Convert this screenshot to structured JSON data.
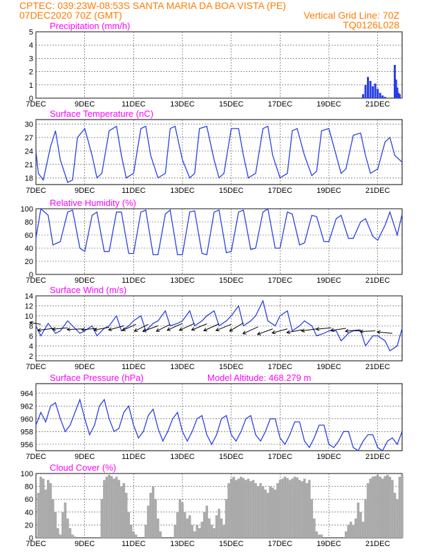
{
  "header": {
    "line1_left": "CPTEC:   039:23W-08:53S   SANTA MARIA DA BOA VISTA (PE)",
    "line2_left": "07DEC2020 70Z (GMT)",
    "line2_right": "Vertical Grid Line: 70Z",
    "line3_right": "TQ0126L028"
  },
  "colors": {
    "header": "#ff7b00",
    "title": "#ff00ff",
    "line": "#2a3fe0",
    "cloud": "#aaaaaa",
    "grid": "#444444"
  },
  "x_ticks": [
    "7DEC",
    "9DEC",
    "11DEC",
    "13DEC",
    "15DEC",
    "17DEC",
    "19DEC",
    "21DEC"
  ],
  "chart_data": [
    {
      "id": "precip",
      "type": "bar",
      "title": "Precipitation (mm/h)",
      "ylim": [
        0,
        5
      ],
      "yticks": [
        0,
        1,
        2,
        3,
        4,
        5
      ],
      "x": [
        20.4,
        20.5,
        20.6,
        20.7,
        20.8,
        20.9,
        21.0,
        21.1,
        21.2,
        21.3,
        21.7,
        21.75,
        21.8,
        21.85,
        21.9
      ],
      "values": [
        0.3,
        1.0,
        1.6,
        1.3,
        0.9,
        1.1,
        0.7,
        0.4,
        0.2,
        0.1,
        2.5,
        1.4,
        0.8,
        0.4,
        0.3
      ]
    },
    {
      "id": "temp",
      "type": "line",
      "title": "Surface Temperature (nC)",
      "ylim": [
        16.5,
        31
      ],
      "yticks": [
        18,
        21,
        24,
        27,
        30
      ],
      "x": [
        7.0,
        7.1,
        7.3,
        7.6,
        7.8,
        8.0,
        8.3,
        8.5,
        8.7,
        9.0,
        9.3,
        9.5,
        9.7,
        10.0,
        10.3,
        10.5,
        10.7,
        11.0,
        11.3,
        11.5,
        11.7,
        12.0,
        12.3,
        12.5,
        12.7,
        13.0,
        13.3,
        13.5,
        13.7,
        14.0,
        14.3,
        14.5,
        14.7,
        15.0,
        15.3,
        15.5,
        15.7,
        16.0,
        16.3,
        16.5,
        16.7,
        17.0,
        17.3,
        17.5,
        17.7,
        18.0,
        18.3,
        18.5,
        18.7,
        19.0,
        19.3,
        19.5,
        19.7,
        20.0,
        20.3,
        20.5,
        20.7,
        21.0,
        21.3,
        21.5,
        21.7,
        22.0
      ],
      "values": [
        24,
        19,
        17.5,
        25,
        28.5,
        22,
        17,
        17.5,
        27,
        29,
        23,
        18,
        19,
        28.5,
        29.5,
        23,
        18,
        19,
        29,
        29.5,
        23,
        18,
        19,
        29,
        29.5,
        22,
        18,
        19,
        29,
        29.5,
        22,
        18,
        19,
        29,
        29,
        23,
        18,
        19,
        29,
        29.5,
        23,
        18,
        19,
        28.5,
        29,
        23,
        18.5,
        19.5,
        28.5,
        29,
        23,
        19,
        20,
        27.5,
        28,
        23,
        19,
        20,
        26,
        27,
        23,
        21.5
      ]
    },
    {
      "id": "rh",
      "type": "line",
      "title": "Relative Humidity (%)",
      "ylim": [
        0,
        100
      ],
      "yticks": [
        0,
        20,
        40,
        60,
        80,
        100
      ],
      "x": [
        7.0,
        7.2,
        7.5,
        7.7,
        8.0,
        8.3,
        8.5,
        8.8,
        9.0,
        9.3,
        9.5,
        9.8,
        10.0,
        10.3,
        10.5,
        10.8,
        11.0,
        11.3,
        11.5,
        11.8,
        12.0,
        12.3,
        12.5,
        12.8,
        13.0,
        13.3,
        13.5,
        13.8,
        14.0,
        14.3,
        14.5,
        14.8,
        15.0,
        15.3,
        15.5,
        15.8,
        16.0,
        16.3,
        16.5,
        16.8,
        17.0,
        17.3,
        17.5,
        17.8,
        18.0,
        18.3,
        18.5,
        18.8,
        19.0,
        19.3,
        19.5,
        19.8,
        20.0,
        20.3,
        20.5,
        20.8,
        21.0,
        21.3,
        21.5,
        21.8,
        22.0
      ],
      "values": [
        55,
        100,
        90,
        45,
        50,
        95,
        98,
        40,
        35,
        90,
        95,
        35,
        35,
        95,
        95,
        32,
        32,
        95,
        98,
        30,
        30,
        92,
        98,
        30,
        30,
        95,
        97,
        32,
        30,
        95,
        98,
        33,
        35,
        95,
        98,
        38,
        40,
        95,
        100,
        40,
        40,
        95,
        92,
        45,
        48,
        90,
        88,
        50,
        50,
        85,
        90,
        55,
        55,
        80,
        85,
        58,
        52,
        75,
        95,
        60,
        92
      ]
    },
    {
      "id": "wind",
      "type": "line",
      "title": "Surface Wind (m/s)",
      "ylim": [
        1,
        14
      ],
      "yticks": [
        2,
        4,
        6,
        8,
        10,
        12,
        14
      ],
      "x": [
        7.0,
        7.2,
        7.5,
        7.8,
        8.0,
        8.3,
        8.5,
        8.8,
        9.0,
        9.3,
        9.5,
        9.8,
        10.0,
        10.3,
        10.5,
        10.8,
        11.0,
        11.3,
        11.5,
        11.8,
        12.0,
        12.3,
        12.5,
        12.8,
        13.0,
        13.3,
        13.5,
        13.8,
        14.0,
        14.3,
        14.5,
        14.8,
        15.0,
        15.3,
        15.5,
        15.8,
        16.0,
        16.3,
        16.5,
        16.8,
        17.0,
        17.3,
        17.5,
        17.8,
        18.0,
        18.3,
        18.5,
        18.8,
        19.0,
        19.3,
        19.5,
        19.8,
        20.0,
        20.3,
        20.5,
        20.8,
        21.0,
        21.3,
        21.5,
        21.8,
        22.0
      ],
      "values": [
        8,
        6,
        8.5,
        6.5,
        7,
        9,
        8,
        6.5,
        7,
        8,
        6,
        7.5,
        8,
        10,
        7,
        8,
        9,
        10,
        7,
        8.5,
        9,
        11,
        8,
        8.5,
        9,
        11,
        8,
        9,
        10,
        11,
        8,
        9,
        10,
        12,
        8,
        9,
        10,
        13,
        9,
        8,
        10,
        11,
        7,
        8,
        9,
        8,
        6,
        6.5,
        7,
        7,
        5,
        6.5,
        7,
        7,
        4,
        6,
        6,
        5,
        3,
        4,
        7.5
      ],
      "arrows": [
        {
          "x": 7.2,
          "y": 8.3,
          "dx": -16,
          "dy": -3
        },
        {
          "x": 7.7,
          "y": 7.5,
          "dx": -22,
          "dy": 3
        },
        {
          "x": 8.3,
          "y": 7.6,
          "dx": -22,
          "dy": 2
        },
        {
          "x": 8.9,
          "y": 7.4,
          "dx": -22,
          "dy": 1
        },
        {
          "x": 9.5,
          "y": 7.5,
          "dx": -22,
          "dy": 2
        },
        {
          "x": 10.0,
          "y": 7.7,
          "dx": -22,
          "dy": 4
        },
        {
          "x": 10.6,
          "y": 8.0,
          "dx": -22,
          "dy": 6
        },
        {
          "x": 11.1,
          "y": 8.3,
          "dx": -20,
          "dy": 9
        },
        {
          "x": 11.6,
          "y": 8.3,
          "dx": -20,
          "dy": 10
        },
        {
          "x": 12.0,
          "y": 8.0,
          "dx": -22,
          "dy": 8
        },
        {
          "x": 12.5,
          "y": 8.3,
          "dx": -20,
          "dy": 10
        },
        {
          "x": 13.0,
          "y": 8.5,
          "dx": -22,
          "dy": 10
        },
        {
          "x": 13.5,
          "y": 8.5,
          "dx": -22,
          "dy": 10
        },
        {
          "x": 14.0,
          "y": 8.4,
          "dx": -22,
          "dy": 9
        },
        {
          "x": 14.5,
          "y": 8.4,
          "dx": -22,
          "dy": 10
        },
        {
          "x": 15.0,
          "y": 8.3,
          "dx": -22,
          "dy": 9
        },
        {
          "x": 15.5,
          "y": 8.6,
          "dx": -20,
          "dy": 12
        },
        {
          "x": 16.1,
          "y": 7.8,
          "dx": -22,
          "dy": 10
        },
        {
          "x": 16.7,
          "y": 7.4,
          "dx": -22,
          "dy": 8
        },
        {
          "x": 17.3,
          "y": 7.4,
          "dx": -22,
          "dy": 6
        },
        {
          "x": 17.9,
          "y": 7.2,
          "dx": -22,
          "dy": 4
        },
        {
          "x": 18.5,
          "y": 7.4,
          "dx": -22,
          "dy": 3
        },
        {
          "x": 19.1,
          "y": 7.6,
          "dx": -22,
          "dy": 2
        },
        {
          "x": 19.7,
          "y": 7.5,
          "dx": -22,
          "dy": 3
        },
        {
          "x": 20.3,
          "y": 7.2,
          "dx": -22,
          "dy": 2
        },
        {
          "x": 20.9,
          "y": 7.0,
          "dx": -22,
          "dy": 1
        },
        {
          "x": 21.6,
          "y": 6.5,
          "dx": -22,
          "dy": -2
        }
      ]
    },
    {
      "id": "pres",
      "type": "line",
      "title": "Surface Pressure (hPa)",
      "annotation": "Model Altitude: 468.279 m",
      "ylim": [
        955,
        965.5
      ],
      "yticks": [
        956,
        958,
        960,
        962,
        964
      ],
      "x": [
        7.0,
        7.2,
        7.4,
        7.6,
        7.8,
        8.0,
        8.2,
        8.4,
        8.6,
        8.8,
        9.0,
        9.2,
        9.4,
        9.6,
        9.8,
        10.0,
        10.2,
        10.4,
        10.6,
        10.8,
        11.0,
        11.2,
        11.4,
        11.6,
        11.8,
        12.0,
        12.2,
        12.4,
        12.6,
        12.8,
        13.0,
        13.2,
        13.4,
        13.6,
        13.8,
        14.0,
        14.2,
        14.4,
        14.6,
        14.8,
        15.0,
        15.2,
        15.4,
        15.6,
        15.8,
        16.0,
        16.2,
        16.4,
        16.6,
        16.8,
        17.0,
        17.2,
        17.4,
        17.6,
        17.8,
        18.0,
        18.2,
        18.4,
        18.6,
        18.8,
        19.0,
        19.2,
        19.4,
        19.6,
        19.8,
        20.0,
        20.2,
        20.4,
        20.6,
        20.8,
        21.0,
        21.2,
        21.4,
        21.6,
        21.8,
        22.0
      ],
      "values": [
        959,
        961,
        959.5,
        962,
        962.5,
        960,
        958,
        959,
        961,
        963,
        960,
        957.5,
        959,
        962,
        963,
        960,
        958,
        958.5,
        961,
        962,
        959,
        957,
        958,
        960.5,
        961.5,
        958.5,
        956.5,
        958,
        960,
        961,
        958,
        956.5,
        958,
        960,
        960.5,
        957.5,
        956,
        957.5,
        960,
        960.5,
        957.5,
        956.5,
        958,
        960,
        960.5,
        957.5,
        956.5,
        958,
        960,
        960,
        957,
        956,
        957.5,
        959.5,
        959.5,
        956.5,
        955.5,
        957,
        959,
        959,
        956,
        955.5,
        956.5,
        958,
        958,
        955.5,
        955,
        956.5,
        957.5,
        957.5,
        955.5,
        955,
        956.5,
        957,
        956,
        958
      ]
    },
    {
      "id": "cloud",
      "type": "area",
      "title": "Cloud Cover (%)",
      "ylim": [
        0,
        100
      ],
      "yticks": [
        0,
        20,
        40,
        60,
        80,
        100
      ],
      "x": [
        7.0,
        7.1,
        7.2,
        7.3,
        7.4,
        7.5,
        7.6,
        7.7,
        7.8,
        7.9,
        8.0,
        8.1,
        8.2,
        8.3,
        8.4,
        8.5,
        8.6,
        8.7,
        8.8,
        8.9,
        9.0,
        9.1,
        9.2,
        9.3,
        9.4,
        9.5,
        9.6,
        9.7,
        9.8,
        9.9,
        10.0,
        10.1,
        10.2,
        10.3,
        10.4,
        10.5,
        10.6,
        10.7,
        10.8,
        10.9,
        11.0,
        11.1,
        11.2,
        11.3,
        11.4,
        11.5,
        11.6,
        11.7,
        11.8,
        11.9,
        12.0,
        12.1,
        12.2,
        12.3,
        12.4,
        12.5,
        12.6,
        12.7,
        12.8,
        12.9,
        13.0,
        13.1,
        13.2,
        13.3,
        13.4,
        13.5,
        13.6,
        13.7,
        13.8,
        13.9,
        14.0,
        14.1,
        14.2,
        14.3,
        14.4,
        14.5,
        14.6,
        14.7,
        14.8,
        14.9,
        15.0,
        15.1,
        15.2,
        15.3,
        15.4,
        15.5,
        15.6,
        15.7,
        15.8,
        15.9,
        16.0,
        16.1,
        16.2,
        16.3,
        16.4,
        16.5,
        16.6,
        16.7,
        16.8,
        16.9,
        17.0,
        17.1,
        17.2,
        17.3,
        17.4,
        17.5,
        17.6,
        17.7,
        17.8,
        17.9,
        18.0,
        18.1,
        18.2,
        18.3,
        18.4,
        18.5,
        18.6,
        18.7,
        18.8,
        18.9,
        19.0,
        19.1,
        19.2,
        19.3,
        19.4,
        19.5,
        19.6,
        19.7,
        19.8,
        19.9,
        20.0,
        20.1,
        20.2,
        20.3,
        20.4,
        20.5,
        20.6,
        20.7,
        20.8,
        20.9,
        21.0,
        21.1,
        21.2,
        21.3,
        21.4,
        21.5,
        21.6,
        21.7,
        21.8,
        21.9,
        22.0
      ],
      "values": [
        0,
        70,
        95,
        92,
        75,
        90,
        85,
        60,
        40,
        15,
        5,
        40,
        55,
        30,
        15,
        5,
        2,
        0,
        0,
        0,
        0,
        0,
        0,
        0,
        0,
        0,
        0,
        60,
        90,
        95,
        98,
        96,
        92,
        95,
        90,
        80,
        85,
        70,
        40,
        20,
        10,
        5,
        0,
        0,
        0,
        20,
        50,
        70,
        80,
        60,
        30,
        10,
        0,
        0,
        0,
        0,
        0,
        20,
        40,
        60,
        55,
        40,
        30,
        35,
        20,
        10,
        20,
        15,
        25,
        40,
        50,
        30,
        20,
        15,
        35,
        45,
        30,
        20,
        60,
        85,
        92,
        95,
        90,
        92,
        95,
        93,
        90,
        92,
        88,
        90,
        85,
        80,
        85,
        80,
        75,
        70,
        80,
        78,
        75,
        85,
        90,
        92,
        95,
        93,
        90,
        92,
        95,
        94,
        90,
        88,
        92,
        85,
        90,
        60,
        30,
        10,
        5,
        5,
        0,
        0,
        0,
        0,
        0,
        0,
        0,
        0,
        0,
        10,
        20,
        25,
        20,
        30,
        55,
        40,
        25,
        60,
        85,
        92,
        95,
        96,
        98,
        95,
        92,
        96,
        98,
        95,
        90,
        70,
        60,
        95,
        98
      ]
    }
  ]
}
